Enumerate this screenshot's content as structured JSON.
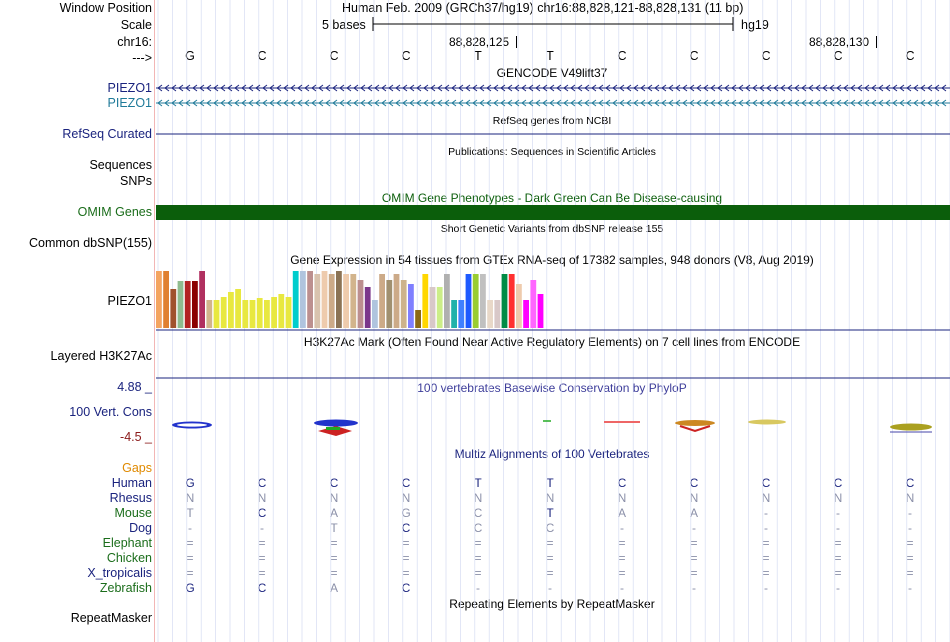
{
  "header": {
    "labels": [
      "Window Position",
      "Scale",
      "chr16:",
      "--->"
    ],
    "position": "Human Feb. 2009 (GRCh37/hg19)   chr16:88,828,121-88,828,131 (11 bp)",
    "scale_text": "5 bases",
    "assembly": "hg19",
    "coord_marks": [
      "88,828,125",
      "88,828,130"
    ]
  },
  "bases": [
    "G",
    "C",
    "C",
    "C",
    "T",
    "T",
    "C",
    "C",
    "C",
    "C",
    "C"
  ],
  "tracks": {
    "gencode": {
      "title": "GENCODE V49lift37",
      "genes": [
        "PIEZO1",
        "PIEZO1"
      ]
    },
    "refseq": {
      "title": "RefSeq genes from NCBI",
      "label": "RefSeq Curated"
    },
    "publications": {
      "title": "Publications: Sequences in Scientific Articles",
      "labels": [
        "Sequences",
        "SNPs"
      ]
    },
    "omim": {
      "title": "OMIM Gene Phenotypes - Dark Green Can Be Disease-causing",
      "label": "OMIM Genes",
      "color": "#0b5e0b"
    },
    "dbsnp": {
      "title": "Short Genetic Variants from dbSNP release 155",
      "label": "Common dbSNP(155)"
    },
    "gtex": {
      "title": "Gene Expression in 54 tissues from GTEx RNA-seq of 17382 samples, 948 donors (V8, Aug 2019)",
      "label": "PIEZO1"
    },
    "h3k27ac": {
      "title": "H3K27Ac Mark (Often Found Near Active Regulatory Elements) on 7 cell lines from ENCODE",
      "label": "Layered H3K27Ac"
    },
    "phylop": {
      "title": "100 vertebrates Basewise Conservation by PhyloP",
      "label": "100 Vert. Cons",
      "max": "4.88 _",
      "min": "-4.5 _"
    },
    "multiz": {
      "title": "Multiz Alignments of 100 Vertebrates",
      "gaps_label": "Gaps",
      "species": [
        {
          "name": "Human",
          "row": [
            "G",
            "C",
            "C",
            "C",
            "T",
            "T",
            "C",
            "C",
            "C",
            "C",
            "C"
          ]
        },
        {
          "name": "Rhesus",
          "row": [
            "N",
            "N",
            "N",
            "N",
            "N",
            "N",
            "N",
            "N",
            "N",
            "N",
            "N"
          ]
        },
        {
          "name": "Mouse",
          "row": [
            "T",
            "C",
            "A",
            "G",
            "C",
            "T",
            "A",
            "A",
            "-",
            "-",
            "-"
          ]
        },
        {
          "name": "Dog",
          "row": [
            "-",
            "-",
            "T",
            "C",
            "C",
            "C",
            "-",
            "-",
            "-",
            "-",
            "-"
          ]
        },
        {
          "name": "Elephant",
          "row": [
            "=",
            "=",
            "=",
            "=",
            "=",
            "=",
            "=",
            "=",
            "=",
            "=",
            "="
          ]
        },
        {
          "name": "Chicken",
          "row": [
            "=",
            "=",
            "=",
            "=",
            "=",
            "=",
            "=",
            "=",
            "=",
            "=",
            "="
          ]
        },
        {
          "name": "X_tropicalis",
          "row": [
            "=",
            "=",
            "=",
            "=",
            "=",
            "=",
            "=",
            "=",
            "=",
            "=",
            "="
          ]
        },
        {
          "name": "Zebrafish",
          "row": [
            "G",
            "C",
            "A",
            "C",
            "-",
            "-",
            "-",
            "-",
            "-",
            "-",
            "-"
          ]
        }
      ]
    },
    "repeatmasker": {
      "title": "Repeating Elements by RepeatMasker",
      "label": "RepeatMasker"
    }
  },
  "chart_data": {
    "type": "bar",
    "title": "Gene Expression in 54 tissues from GTEx RNA-seq of 17382 samples, 948 donors (V8, Aug 2019)",
    "values": [
      57,
      57,
      39,
      47,
      47,
      47,
      57,
      28,
      28,
      31,
      36,
      39,
      28,
      28,
      30,
      28,
      31,
      34,
      31,
      57,
      57,
      57,
      54,
      57,
      54,
      57,
      54,
      54,
      48,
      41,
      28,
      54,
      48,
      54,
      48,
      44,
      18,
      54,
      41,
      41,
      54,
      28,
      28,
      54,
      54,
      54,
      28,
      28,
      54,
      54,
      44,
      28,
      48,
      34
    ],
    "colors": [
      "#f4a460",
      "#e08030",
      "#a0522d",
      "#8fbc8f",
      "#b22222",
      "#8b0000",
      "#b03060",
      "#d2b48c",
      "#e8e840",
      "#e8e840",
      "#e8e840",
      "#e8e840",
      "#e8e840",
      "#e8e840",
      "#e8e840",
      "#e8e840",
      "#e8e840",
      "#e8e840",
      "#e8e840",
      "#00cdcd",
      "#b0c4de",
      "#bc8f8f",
      "#d8c2ae",
      "#eecbad",
      "#ccaa88",
      "#8b7355",
      "#eecbad",
      "#d2b48c",
      "#bc8f8f",
      "#7a378b",
      "#b0c4de",
      "#ccaa88",
      "#a09070",
      "#ccaa88",
      "#cdb38b",
      "#7f7fff",
      "#8b6914",
      "#ffd700",
      "#d8c8c8",
      "#ccee88",
      "#b0b0b0",
      "#20b2aa",
      "#4080ff",
      "#1e5aff",
      "#9acd32",
      "#c0c0c0",
      "#e8d8c8",
      "#d8c8c8",
      "#008b45",
      "#ff3030",
      "#eecbad",
      "#ff00ff",
      "#ff66ff",
      "#ff00ff"
    ]
  },
  "colors": {
    "navy": "#1a237e",
    "gencode_teal": "#1f7a99",
    "omim_green": "#0b5e0b",
    "rhesus_gray": "#8a8fa8"
  }
}
